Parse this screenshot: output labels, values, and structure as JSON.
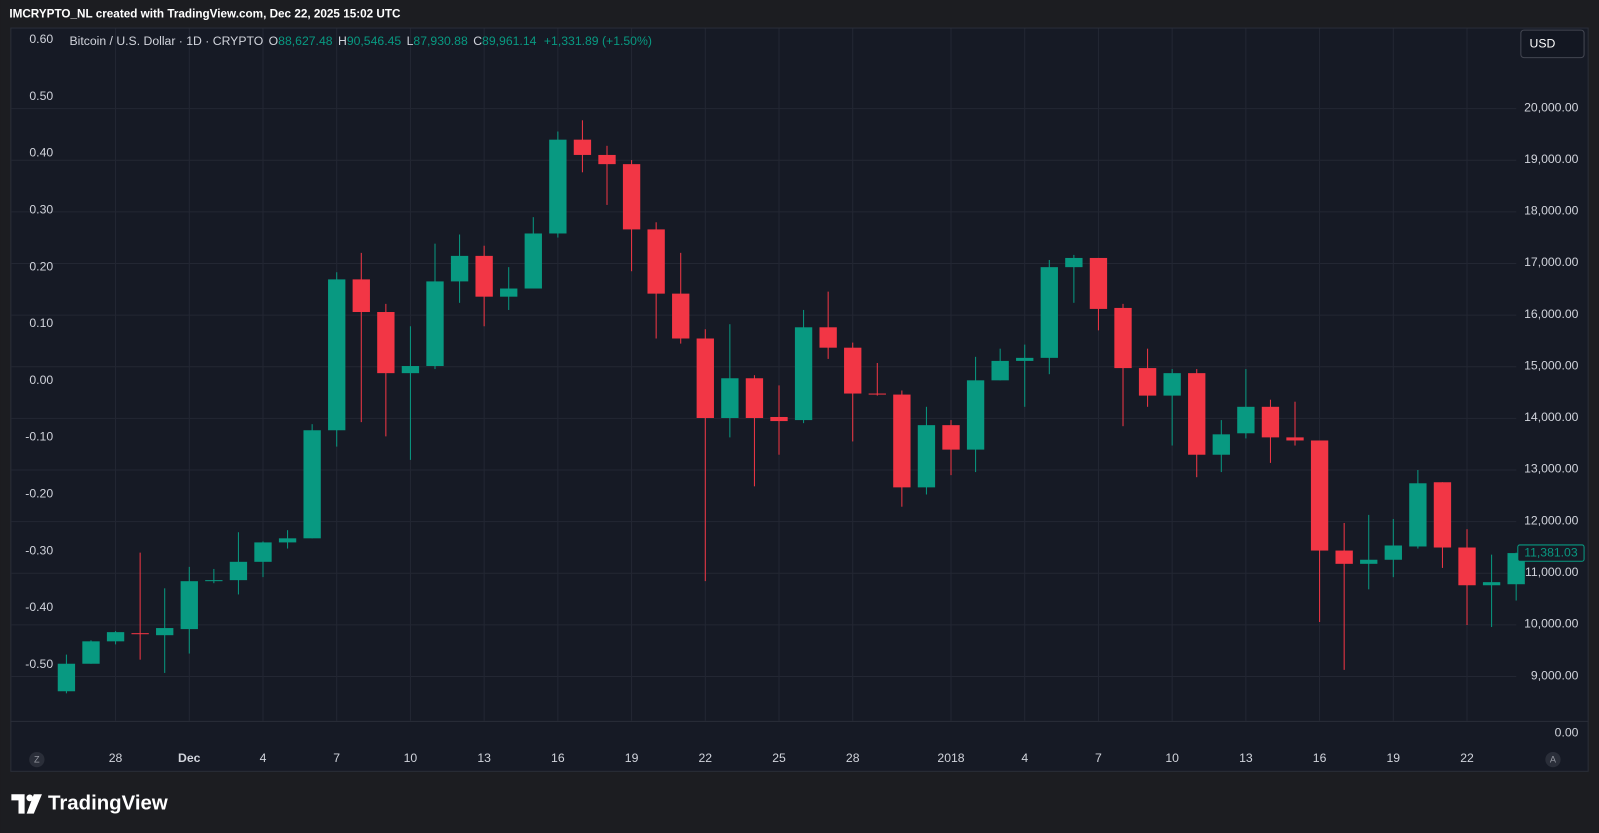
{
  "chart_data": {
    "type": "candlestick",
    "header": "IMCRYPTO_NL created with TradingView.com, Dec 22, 2025 15:02 UTC",
    "legend": {
      "symbol": "Bitcoin / U.S. Dollar · 1D · CRYPTO",
      "fields": [
        {
          "label": "O",
          "value": "88,627.48"
        },
        {
          "label": "H",
          "value": "90,546.45"
        },
        {
          "label": "L",
          "value": "87,930.88"
        },
        {
          "label": "C",
          "value": "89,961.14"
        }
      ],
      "change": "+1,331.89 (+1.50%)"
    },
    "currency": "USD",
    "left_button": "Z",
    "right_button": "A",
    "brand": "TradingView",
    "up_color": "#089981",
    "down_color": "#f23645",
    "grid": true,
    "categories": [
      null,
      null,
      "28",
      null,
      null,
      "Dec",
      null,
      null,
      "4",
      null,
      null,
      "7",
      null,
      null,
      "10",
      null,
      null,
      "13",
      null,
      null,
      "16",
      null,
      null,
      "19",
      null,
      null,
      "22",
      null,
      null,
      "25",
      null,
      null,
      "28",
      null,
      null,
      null,
      "2018",
      null,
      null,
      "4",
      null,
      null,
      "7",
      null,
      null,
      "10",
      null,
      null,
      "13",
      null,
      null,
      "16",
      null,
      null,
      "19",
      null,
      null,
      "22",
      null,
      null
    ],
    "open": [
      8705,
      9238,
      9672,
      9830,
      9791,
      9909,
      10837,
      10857,
      11212,
      11588,
      11667,
      13760,
      16682,
      16050,
      14866,
      15004,
      16643,
      17137,
      16347,
      16505,
      17571,
      19388,
      19092,
      18914,
      17650,
      16406,
      15537,
      13997,
      14767,
      14017,
      13957,
      15754,
      15359,
      14471,
      14451,
      12654,
      13859,
      13385,
      14727,
      15103,
      15162,
      16919,
      17097,
      16129,
      14964,
      14431,
      14866,
      13286,
      13701,
      14214,
      13622,
      13562,
      11430,
      11173,
      11252,
      11509,
      12753,
      11489,
      10758,
      10778
    ],
    "high": [
      9415,
      9692,
      9870,
      11390,
      10699,
      11114,
      11074,
      11785,
      11607,
      11825,
      13878,
      16821,
      17196,
      16208,
      15774,
      17374,
      17551,
      17334,
      16919,
      17887,
      19546,
      19763,
      19269,
      18993,
      17788,
      17196,
      15715,
      15814,
      14826,
      14629,
      16090,
      16445,
      15458,
      15063,
      14530,
      14214,
      13957,
      15182,
      15340,
      15419,
      17058,
      17156,
      17097,
      16208,
      15340,
      14945,
      14945,
      13957,
      14945,
      14352,
      14313,
      13562,
      11963,
      12121,
      12042,
      12990,
      12753,
      11844,
      11351,
      11390
    ],
    "low": [
      8665,
      9238,
      9613,
      9317,
      9060,
      9435,
      10798,
      10580,
      10916,
      11469,
      11667,
      13444,
      13918,
      13641,
      13187,
      14945,
      16228,
      15774,
      16090,
      16505,
      17492,
      18756,
      18124,
      16840,
      15537,
      15438,
      10837,
      13622,
      12674,
      13286,
      13898,
      15142,
      13543,
      14431,
      12279,
      12516,
      12891,
      12950,
      14727,
      14214,
      14846,
      16228,
      15695,
      13839,
      14214,
      13464,
      12851,
      12950,
      13602,
      13128,
      13464,
      10047,
      9119,
      10679,
      10915,
      11469,
      11094,
      9988,
      9949,
      10462
    ],
    "close": [
      9238,
      9672,
      9850,
      9810,
      9929,
      10837,
      10857,
      11212,
      11588,
      11667,
      13760,
      16682,
      16050,
      14866,
      15004,
      16643,
      17137,
      16347,
      16505,
      17571,
      19388,
      19092,
      18914,
      17650,
      16406,
      15537,
      13997,
      14767,
      13997,
      13938,
      15754,
      15359,
      14471,
      14451,
      12654,
      13859,
      13385,
      14727,
      15103,
      15162,
      16919,
      17097,
      16110,
      14964,
      14431,
      14866,
      13286,
      13681,
      14214,
      13622,
      13562,
      11430,
      11173,
      11252,
      11528,
      12733,
      11489,
      10758,
      10818,
      11381.03
    ],
    "last_close_label": "11,381.03",
    "ylim": [
      8132,
      21540
    ],
    "yticks": [
      {
        "value": 9000,
        "label": "9,000.00"
      },
      {
        "value": 10000,
        "label": "10,000.00"
      },
      {
        "value": 11000,
        "label": "11,000.00"
      },
      {
        "value": 12000,
        "label": "12,000.00"
      },
      {
        "value": 13000,
        "label": "13,000.00"
      },
      {
        "value": 14000,
        "label": "14,000.00"
      },
      {
        "value": 15000,
        "label": "15,000.00"
      },
      {
        "value": 16000,
        "label": "16,000.00"
      },
      {
        "value": 17000,
        "label": "17,000.00"
      },
      {
        "value": 18000,
        "label": "18,000.00"
      },
      {
        "value": 19000,
        "label": "19,000.00"
      },
      {
        "value": 20000,
        "label": "20,000.00"
      }
    ],
    "price_axis_floor_label": "0.00",
    "y2lim": [
      -0.599,
      0.62
    ],
    "y2ticks": [
      {
        "value": -0.5,
        "label": "-0.50"
      },
      {
        "value": -0.4,
        "label": "-0.40"
      },
      {
        "value": -0.3,
        "label": "-0.30"
      },
      {
        "value": -0.2,
        "label": "-0.20"
      },
      {
        "value": -0.1,
        "label": "-0.10"
      },
      {
        "value": 0,
        "label": "0.00"
      },
      {
        "value": 0.1,
        "label": "0.10"
      },
      {
        "value": 0.2,
        "label": "0.20"
      },
      {
        "value": 0.3,
        "label": "0.30"
      },
      {
        "value": 0.4,
        "label": "0.40"
      },
      {
        "value": 0.5,
        "label": "0.50"
      },
      {
        "value": 0.6,
        "label": "0.60"
      }
    ]
  }
}
